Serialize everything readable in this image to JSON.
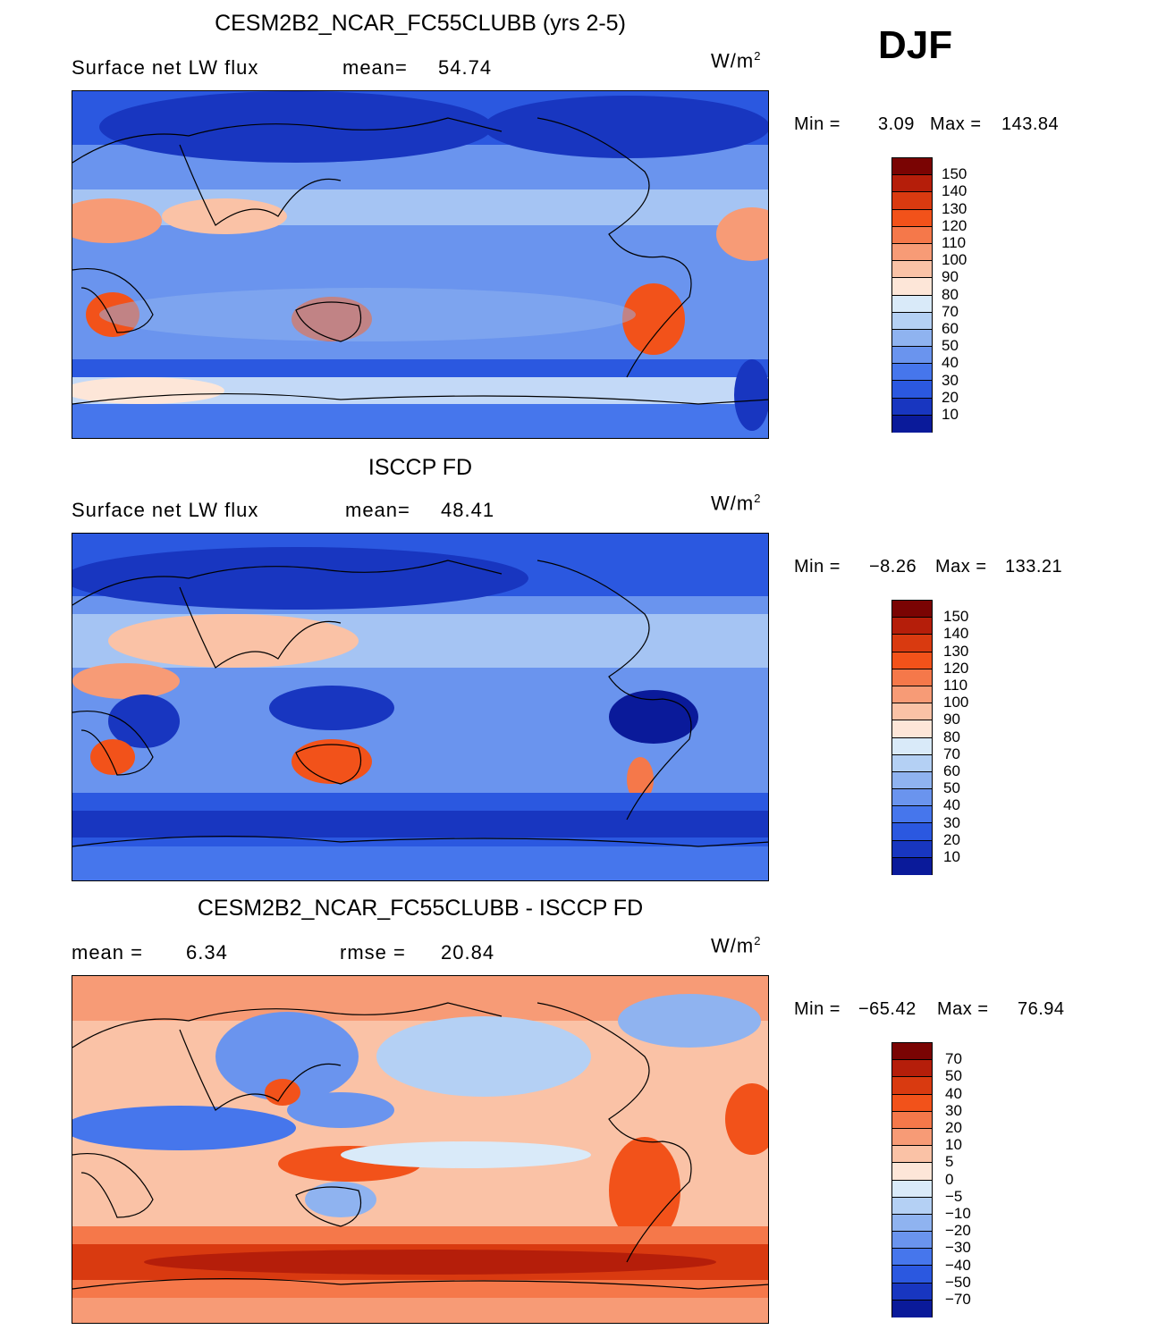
{
  "season": "DJF",
  "units_base": "W/m",
  "units_exp": "2",
  "panels": [
    {
      "title": "CESM2B2_NCAR_FC55CLUBB (yrs 2-5)",
      "left_label": "Surface net LW flux",
      "mid_label": "mean=",
      "mid_value": "54.74",
      "min_label": "Min =",
      "min_value": "3.09",
      "max_label": "Max =",
      "max_value": "143.84",
      "colorbar_labels": [
        "150",
        "140",
        "130",
        "120",
        "110",
        "100",
        "90",
        "80",
        "70",
        "60",
        "50",
        "40",
        "30",
        "20",
        "10"
      ]
    },
    {
      "title": "ISCCP FD",
      "left_label": "Surface net LW flux",
      "mid_label": "mean=",
      "mid_value": "48.41",
      "min_label": "Min =",
      "min_value": "−8.26",
      "max_label": "Max =",
      "max_value": "133.21",
      "colorbar_labels": [
        "150",
        "140",
        "130",
        "120",
        "110",
        "100",
        "90",
        "80",
        "70",
        "60",
        "50",
        "40",
        "30",
        "20",
        "10"
      ]
    },
    {
      "title": "CESM2B2_NCAR_FC55CLUBB - ISCCP FD",
      "left_label": "mean =",
      "left_value": "6.34",
      "mid_label": "rmse =",
      "mid_value": "20.84",
      "min_label": "Min =",
      "min_value": "−65.42",
      "max_label": "Max =",
      "max_value": "76.94",
      "colorbar_labels": [
        "70",
        "50",
        "40",
        "30",
        "20",
        "10",
        "5",
        "0",
        "−5",
        "−10",
        "−20",
        "−30",
        "−40",
        "−50",
        "−70"
      ]
    }
  ],
  "colors": {
    "palette": [
      "#7a0403",
      "#b51e0a",
      "#d93a10",
      "#f2521a",
      "#f5784a",
      "#f79b76",
      "#fac2a6",
      "#fde6d8",
      "#d9eaf9",
      "#b4d0f4",
      "#8fb3f0",
      "#6a94ee",
      "#4676ec",
      "#2b58e0",
      "#1836c0",
      "#0a1a9a"
    ]
  }
}
